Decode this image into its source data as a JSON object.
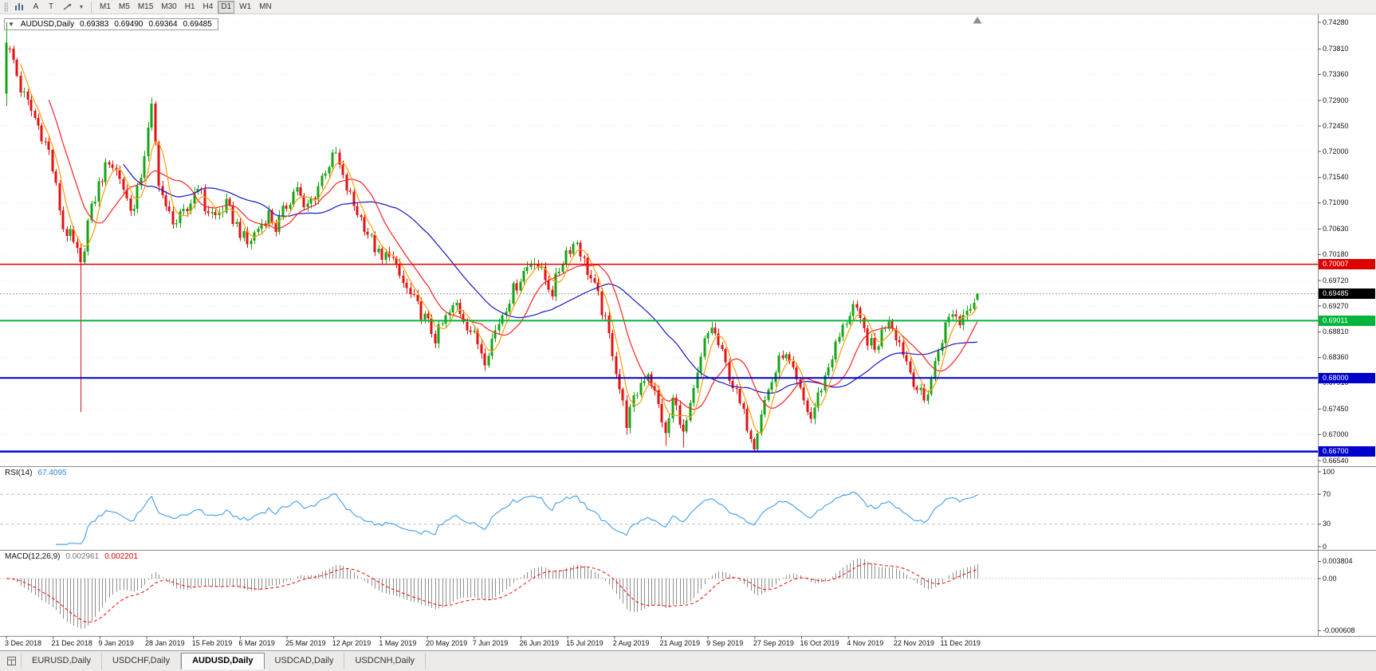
{
  "toolbar": {
    "tool_a": "A",
    "tool_t": "T",
    "overflow_caret": "▾",
    "timeframes": [
      "M1",
      "M5",
      "M15",
      "M30",
      "H1",
      "H4",
      "D1",
      "W1",
      "MN"
    ],
    "active_timeframe": "D1"
  },
  "icons": {
    "one_click_trading": "▼",
    "chart_shift_marker": "triangle-up",
    "toolbar_chart": "bar-chart",
    "toolbar_arrows": "diagonal-arrow",
    "tab_windows": "window-grid"
  },
  "tabbar": {
    "tabs": [
      "EURUSD,Daily",
      "USDCHF,Daily",
      "AUDUSD,Daily",
      "USDCAD,Daily",
      "USDCNH,Daily"
    ],
    "active_tab": "AUDUSD,Daily"
  },
  "chart_data": {
    "type": "candlestick",
    "title": {
      "symbol": "AUDUSD,Daily",
      "open": "0.69383",
      "high": "0.69490",
      "low": "0.69364",
      "close": "0.69485"
    },
    "price_range": {
      "top": 0.7428,
      "bottom": 0.6654
    },
    "y_axis_ticks": [
      "0.74280",
      "0.73810",
      "0.73360",
      "0.72900",
      "0.72450",
      "0.72000",
      "0.71540",
      "0.71090",
      "0.70630",
      "0.70180",
      "0.69720",
      "0.69270",
      "0.68810",
      "0.68360",
      "0.67910",
      "0.67450",
      "0.67000",
      "0.66540"
    ],
    "x_axis_dates": [
      "3 Dec 2018",
      "21 Dec 2018",
      "9 Jan 2019",
      "28 Jan 2019",
      "15 Feb 2019",
      "6 Mar 2019",
      "25 Mar 2019",
      "12 Apr 2019",
      "1 May 2019",
      "20 May 2019",
      "7 Jun 2019",
      "26 Jun 2019",
      "15 Jul 2019",
      "2 Aug 2019",
      "21 Aug 2019",
      "9 Sep 2019",
      "27 Sep 2019",
      "16 Oct 2019",
      "4 Nov 2019",
      "22 Nov 2019",
      "11 Dec 2019"
    ],
    "bars_total": 275,
    "bars_per_date_label": 13.2,
    "swing_anchors": [
      [
        0,
        0.739
      ],
      [
        2,
        0.736
      ],
      [
        4,
        0.731
      ],
      [
        6,
        0.7285
      ],
      [
        9,
        0.7245
      ],
      [
        12,
        0.72
      ],
      [
        14,
        0.7135
      ],
      [
        16,
        0.7065
      ],
      [
        18,
        0.705
      ],
      [
        20,
        0.702
      ],
      [
        21,
        0.6995
      ],
      [
        23,
        0.7075
      ],
      [
        26,
        0.714
      ],
      [
        29,
        0.7185
      ],
      [
        32,
        0.7155
      ],
      [
        34,
        0.7115
      ],
      [
        36,
        0.7095
      ],
      [
        38,
        0.716
      ],
      [
        40,
        0.7235
      ],
      [
        41,
        0.7275
      ],
      [
        43,
        0.715
      ],
      [
        45,
        0.7095
      ],
      [
        48,
        0.7075
      ],
      [
        51,
        0.7095
      ],
      [
        54,
        0.7145
      ],
      [
        56,
        0.71
      ],
      [
        59,
        0.7085
      ],
      [
        62,
        0.7105
      ],
      [
        65,
        0.707
      ],
      [
        68,
        0.7035
      ],
      [
        71,
        0.7065
      ],
      [
        74,
        0.709
      ],
      [
        76,
        0.7065
      ],
      [
        79,
        0.7105
      ],
      [
        82,
        0.714
      ],
      [
        84,
        0.7095
      ],
      [
        87,
        0.7125
      ],
      [
        90,
        0.717
      ],
      [
        93,
        0.7195
      ],
      [
        95,
        0.715
      ],
      [
        98,
        0.7105
      ],
      [
        101,
        0.707
      ],
      [
        104,
        0.703
      ],
      [
        106,
        0.7005
      ],
      [
        108,
        0.7025
      ],
      [
        110,
        0.699
      ],
      [
        113,
        0.6955
      ],
      [
        116,
        0.6925
      ],
      [
        119,
        0.6895
      ],
      [
        121,
        0.687
      ],
      [
        124,
        0.6905
      ],
      [
        127,
        0.693
      ],
      [
        130,
        0.6895
      ],
      [
        133,
        0.6862
      ],
      [
        135,
        0.6835
      ],
      [
        137,
        0.6868
      ],
      [
        140,
        0.6915
      ],
      [
        143,
        0.6955
      ],
      [
        146,
        0.6988
      ],
      [
        149,
        0.7012
      ],
      [
        151,
        0.6985
      ],
      [
        154,
        0.6952
      ],
      [
        156,
        0.6992
      ],
      [
        158,
        0.7025
      ],
      [
        161,
        0.7042
      ],
      [
        163,
        0.7005
      ],
      [
        165,
        0.6975
      ],
      [
        167,
        0.6942
      ],
      [
        169,
        0.6898
      ],
      [
        171,
        0.6848
      ],
      [
        173,
        0.6782
      ],
      [
        175,
        0.6722
      ],
      [
        177,
        0.6758
      ],
      [
        179,
        0.6792
      ],
      [
        181,
        0.6812
      ],
      [
        183,
        0.6772
      ],
      [
        185,
        0.6728
      ],
      [
        186,
        0.6695
      ],
      [
        188,
        0.6762
      ],
      [
        190,
        0.673
      ],
      [
        191,
        0.6698
      ],
      [
        193,
        0.6745
      ],
      [
        195,
        0.6802
      ],
      [
        197,
        0.6862
      ],
      [
        199,
        0.6892
      ],
      [
        201,
        0.6858
      ],
      [
        203,
        0.6822
      ],
      [
        205,
        0.6788
      ],
      [
        207,
        0.6752
      ],
      [
        209,
        0.6718
      ],
      [
        211,
        0.6685
      ],
      [
        213,
        0.6742
      ],
      [
        215,
        0.6778
      ],
      [
        217,
        0.6812
      ],
      [
        219,
        0.6845
      ],
      [
        221,
        0.6822
      ],
      [
        223,
        0.679
      ],
      [
        225,
        0.6758
      ],
      [
        227,
        0.6728
      ],
      [
        229,
        0.6768
      ],
      [
        231,
        0.6802
      ],
      [
        233,
        0.684
      ],
      [
        235,
        0.6872
      ],
      [
        237,
        0.6902
      ],
      [
        239,
        0.6928
      ],
      [
        241,
        0.6895
      ],
      [
        243,
        0.6868
      ],
      [
        245,
        0.6848
      ],
      [
        247,
        0.688
      ],
      [
        249,
        0.6908
      ],
      [
        251,
        0.6878
      ],
      [
        253,
        0.6848
      ],
      [
        255,
        0.6812
      ],
      [
        257,
        0.6782
      ],
      [
        259,
        0.6758
      ],
      [
        261,
        0.68
      ],
      [
        263,
        0.685
      ],
      [
        265,
        0.6892
      ],
      [
        267,
        0.6918
      ],
      [
        269,
        0.6898
      ],
      [
        271,
        0.6928
      ],
      [
        273,
        0.6938
      ],
      [
        274,
        0.69485
      ]
    ],
    "bar_overrides": [
      {
        "bar": 0,
        "open": 0.7302,
        "high": 0.7428,
        "low": 0.728,
        "close": 0.7392
      },
      {
        "bar": 21,
        "low": 0.674
      },
      {
        "bar": 41,
        "high": 0.7295
      },
      {
        "bar": 175,
        "low": 0.67
      },
      {
        "bar": 186,
        "low": 0.668
      },
      {
        "bar": 191,
        "low": 0.6677
      },
      {
        "bar": 211,
        "low": 0.667
      },
      {
        "bar": 274,
        "open": 0.69383,
        "high": 0.6949,
        "low": 0.69364,
        "close": 0.69485
      }
    ],
    "horizontal_lines": [
      {
        "value": 0.70007,
        "label": "0.70007",
        "color": "#dd0000",
        "width": 1.6
      },
      {
        "value": 0.69011,
        "label": "0.69011",
        "color": "#00b53a",
        "width": 2
      },
      {
        "value": 0.68,
        "label": "0.68000",
        "color": "#0000cc",
        "width": 2
      },
      {
        "value": 0.667,
        "label": "0.66700",
        "color": "#0000cc",
        "width": 2.4
      }
    ],
    "current_price": {
      "value": 0.69485,
      "label": "0.69485",
      "color": "#000000"
    },
    "moving_averages": [
      {
        "period": 34,
        "color": "#1616c8"
      },
      {
        "period": 13,
        "color": "#ff2020"
      },
      {
        "period": 5,
        "color": "#ff9d00"
      }
    ],
    "colors": {
      "bull": "#16a416",
      "bear": "#e31212",
      "grid": "#efefef",
      "separator": "#8c8c8c",
      "hist": "#8e8e8e",
      "bid_line": "#9a9a9a"
    },
    "rsi": {
      "label": "RSI(14)",
      "value": "67.4095",
      "period": 14,
      "levels": [
        70,
        30
      ],
      "axis_ticks": [
        "100",
        "70",
        "30",
        "0"
      ],
      "color": "#3d9df0"
    },
    "macd": {
      "label": "MACD(12,26,9)",
      "value_main": "0.002961",
      "value_signal": "0.002201",
      "fast": 12,
      "slow": 26,
      "signal": 9,
      "axis_ticks": [
        "0.003804",
        "0.00",
        "-0.000608"
      ],
      "signal_color": "#ff0000"
    }
  }
}
